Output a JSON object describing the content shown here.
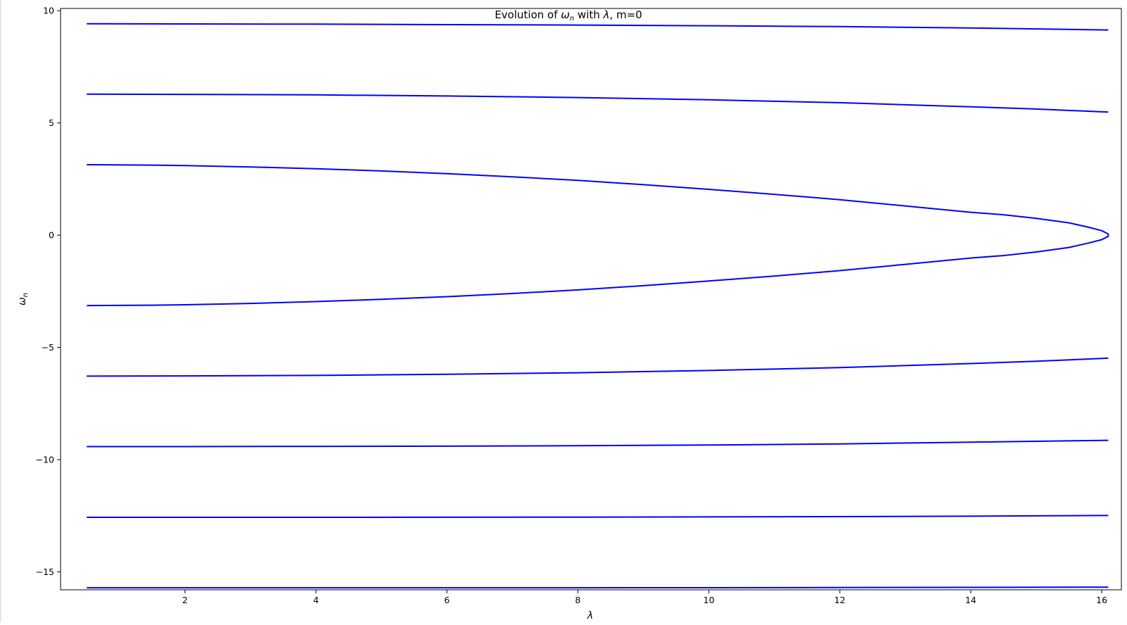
{
  "chart_data": {
    "type": "line",
    "title": "Evolution of ω_n with λ, m=0",
    "title_parts": {
      "prefix": "Evolution of ",
      "symbol": "ω",
      "subscript": "n",
      "middle": " with ",
      "lambda": "λ",
      "suffix": ", m=0"
    },
    "xlabel": "λ",
    "ylabel": {
      "symbol": "ω",
      "subscript": "n"
    },
    "xlim": [
      0.1,
      16.3
    ],
    "ylim": [
      -15.8,
      10.1
    ],
    "xticks": [
      2,
      4,
      6,
      8,
      10,
      12,
      14,
      16
    ],
    "yticks": [
      10,
      5,
      0,
      -5,
      -10,
      -15
    ],
    "ytick_labels": [
      "10",
      "5",
      "0",
      "−5",
      "−10",
      "−15"
    ],
    "grid": false,
    "legend": "none",
    "line_color": "#0000ff",
    "series": [
      {
        "x": [
          0.5,
          2,
          4,
          6,
          8,
          10,
          12,
          14,
          16.1
        ],
        "values": [
          9.42,
          9.41,
          9.4,
          9.38,
          9.36,
          9.33,
          9.29,
          9.23,
          9.14
        ]
      },
      {
        "x": [
          0.5,
          2,
          4,
          6,
          8,
          10,
          12,
          14,
          15,
          16.1
        ],
        "values": [
          6.28,
          6.27,
          6.25,
          6.2,
          6.13,
          6.03,
          5.9,
          5.72,
          5.62,
          5.48
        ]
      },
      {
        "x": [
          0.5,
          1.5,
          2,
          3,
          4,
          5,
          6,
          7,
          8,
          9,
          10,
          11,
          12,
          13,
          14,
          14.5,
          15,
          15.5,
          15.8,
          16.0,
          16.1,
          16.1,
          16.0,
          15.8,
          15.5,
          15,
          14.5,
          14,
          13,
          12,
          11,
          10,
          9,
          8,
          7,
          6,
          5,
          4,
          3,
          2,
          1.5,
          0.5
        ],
        "values": [
          3.14,
          3.12,
          3.1,
          3.04,
          2.96,
          2.86,
          2.74,
          2.6,
          2.44,
          2.25,
          2.04,
          1.82,
          1.58,
          1.3,
          1.02,
          0.91,
          0.75,
          0.55,
          0.35,
          0.2,
          0.05,
          -0.05,
          -0.2,
          -0.35,
          -0.55,
          -0.75,
          -0.91,
          -1.02,
          -1.3,
          -1.58,
          -1.82,
          -2.04,
          -2.25,
          -2.44,
          -2.6,
          -2.74,
          -2.86,
          -2.96,
          -3.04,
          -3.1,
          -3.12,
          -3.14
        ]
      },
      {
        "x": [
          0.5,
          2,
          4,
          6,
          8,
          10,
          12,
          14,
          15,
          16.1
        ],
        "values": [
          -6.28,
          -6.27,
          -6.25,
          -6.2,
          -6.13,
          -6.03,
          -5.9,
          -5.72,
          -5.62,
          -5.48
        ]
      },
      {
        "x": [
          0.5,
          2,
          4,
          6,
          8,
          10,
          12,
          14,
          16.1
        ],
        "values": [
          -9.42,
          -9.42,
          -9.41,
          -9.4,
          -9.38,
          -9.35,
          -9.3,
          -9.22,
          -9.14
        ]
      },
      {
        "x": [
          0.5,
          4,
          8,
          12,
          14,
          16.1
        ],
        "values": [
          -12.57,
          -12.57,
          -12.56,
          -12.54,
          -12.52,
          -12.49
        ]
      },
      {
        "x": [
          0.5,
          4,
          8,
          12,
          16.1
        ],
        "values": [
          -15.71,
          -15.71,
          -15.71,
          -15.7,
          -15.68
        ]
      }
    ]
  }
}
